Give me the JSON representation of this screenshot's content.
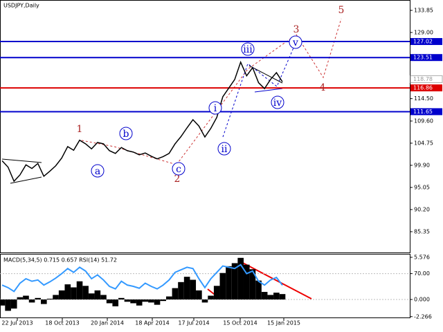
{
  "chart_data": {
    "type": "line",
    "title": "USDJPY,Daily",
    "values": [
      100.9,
      99.5,
      96.4,
      97.8,
      100.0,
      99.2,
      100.3,
      97.5,
      98.6,
      99.8,
      101.5,
      104.0,
      103.2,
      105.4,
      104.6,
      103.5,
      104.9,
      104.6,
      103.1,
      102.5,
      103.8,
      103.1,
      102.8,
      102.2,
      102.6,
      101.9,
      101.3,
      101.8,
      102.5,
      104.6,
      106.2,
      108.1,
      109.9,
      108.5,
      106.1,
      108.0,
      110.4,
      114.9,
      116.8,
      118.7,
      122.5,
      119.5,
      121.3,
      118.0,
      116.7,
      118.7,
      120.2,
      118.2
    ],
    "color": "#000000",
    "ylim": [
      80.8,
      136.12
    ],
    "yticks": [
      133.85,
      {
        "value": 129,
        "label": "129.00"
      },
      {
        "value": 114.5,
        "label": "114.50"
      },
      {
        "value": 109.6,
        "label": "109.60"
      },
      104.75,
      {
        "value": 99.9,
        "label": "99.90"
      },
      95.05,
      {
        "value": 90.2,
        "label": "90.20"
      },
      85.35
    ],
    "levels": [
      {
        "value": 127.02,
        "color": "#0000cc"
      },
      {
        "value": 123.51,
        "color": "#0000cc"
      },
      {
        "value": 116.86,
        "color": "#dd0000"
      },
      {
        "value": 111.65,
        "color": "#0000cc"
      }
    ],
    "current_price": 118.78,
    "xticks": [
      "22 Jul 2013",
      "18 Oct 2013",
      "20 Jan 2014",
      "18 Apr 2014",
      "17 Jul 2014",
      "15 Oct 2014",
      "15 Jan 2015"
    ],
    "waves": [
      {
        "text": "1",
        "color": "#aa2222"
      },
      {
        "text": "2",
        "color": "#aa2222"
      },
      {
        "text": "3",
        "color": "#aa2222"
      },
      {
        "text": "4",
        "color": "#aa2222"
      },
      {
        "text": "5",
        "color": "#aa2222"
      },
      {
        "text": "a",
        "color": "#0000cc"
      },
      {
        "text": "b",
        "color": "#0000cc"
      },
      {
        "text": "c",
        "color": "#0000cc"
      },
      {
        "text": "i",
        "color": "#0000cc"
      },
      {
        "text": "ii",
        "color": "#0000cc"
      },
      {
        "text": "iii",
        "color": "#0000cc"
      },
      {
        "text": "iv",
        "color": "#0000cc"
      },
      {
        "text": "v",
        "color": "#0000cc"
      }
    ],
    "indicator": {
      "title": "MACD(5,34,5) 0.715 0.657 RSI(14) 51.72",
      "ylim": [
        -2.47,
        5.94
      ],
      "yticks": [
        5.576,
        {
          "value": 0,
          "label": "0.000"
        },
        -2.266
      ],
      "y2lim": [
        0,
        100
      ],
      "y2ticks": [
        {
          "value": 70,
          "label": "70.00"
        }
      ],
      "series": [
        {
          "name": "MACD",
          "color": "#000000",
          "values": [
            -0.8,
            -1.5,
            -1.2,
            0.3,
            0.5,
            -0.4,
            0.2,
            -0.6,
            0.1,
            0.6,
            1.2,
            2.0,
            1.6,
            2.4,
            1.8,
            0.8,
            1.2,
            0.6,
            -0.5,
            -0.9,
            0.2,
            -0.3,
            -0.5,
            -0.8,
            -0.3,
            -0.4,
            -0.7,
            -0.2,
            0.4,
            1.5,
            2.3,
            3.0,
            2.6,
            1.2,
            -0.4,
            0.5,
            1.8,
            3.5,
            4.4,
            4.8,
            5.5,
            4.6,
            4.0,
            2.5,
            1.0,
            0.6,
            0.9,
            0.715
          ]
        },
        {
          "name": "RSI",
          "color": "#3399ff",
          "axis": "y2",
          "values": [
            52,
            48,
            42,
            55,
            62,
            58,
            60,
            52,
            57,
            63,
            70,
            78,
            72,
            80,
            74,
            62,
            68,
            60,
            50,
            46,
            58,
            52,
            50,
            47,
            55,
            50,
            46,
            52,
            60,
            72,
            76,
            80,
            78,
            62,
            48,
            62,
            72,
            82,
            80,
            78,
            84,
            70,
            74,
            58,
            52,
            60,
            64,
            51.72
          ]
        }
      ]
    }
  }
}
